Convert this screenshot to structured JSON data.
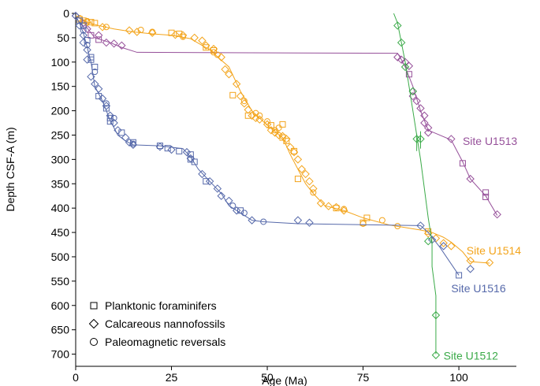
{
  "chart_data": {
    "type": "scatter",
    "xlabel": "Age (Ma)",
    "ylabel": "Depth CSF-A (m)",
    "xlim": [
      0,
      115
    ],
    "ylim": [
      0,
      725
    ],
    "y_inverted": true,
    "x_ticks": [
      0,
      25,
      50,
      75,
      100
    ],
    "y_ticks": [
      0,
      50,
      100,
      150,
      200,
      250,
      300,
      350,
      400,
      450,
      500,
      550,
      600,
      650,
      700
    ],
    "grid": false,
    "legend_position": "bottom-left",
    "legend": [
      {
        "marker": "square",
        "label": "Planktonic foraminifers"
      },
      {
        "marker": "diamond",
        "label": "Calcareous nannofossils"
      },
      {
        "marker": "circle",
        "label": "Paleomagnetic reversals"
      }
    ],
    "series": [
      {
        "name": "Site U1513",
        "color": "#96509a",
        "line": [
          [
            0,
            5
          ],
          [
            2,
            15
          ],
          [
            3,
            30
          ],
          [
            5,
            50
          ],
          [
            9,
            60
          ],
          [
            12,
            70
          ],
          [
            16,
            80
          ],
          [
            84,
            82
          ],
          [
            85,
            95
          ],
          [
            86,
            110
          ],
          [
            88,
            150
          ],
          [
            90,
            200
          ],
          [
            92,
            240
          ],
          [
            98,
            260
          ],
          [
            101,
            305
          ],
          [
            103,
            340
          ],
          [
            107,
            375
          ],
          [
            110,
            415
          ]
        ],
        "squares": [
          [
            4,
            45
          ],
          [
            6,
            54
          ],
          [
            87,
            125
          ],
          [
            101,
            308
          ],
          [
            107,
            368
          ],
          [
            107,
            377
          ]
        ],
        "diamonds": [
          [
            0,
            5
          ],
          [
            2,
            20
          ],
          [
            3,
            32
          ],
          [
            6,
            45
          ],
          [
            8,
            60
          ],
          [
            10,
            62
          ],
          [
            12,
            66
          ],
          [
            84,
            90
          ],
          [
            85,
            95
          ],
          [
            86,
            100
          ],
          [
            87,
            108
          ],
          [
            88,
            160
          ],
          [
            88,
            170
          ],
          [
            89,
            180
          ],
          [
            90,
            195
          ],
          [
            91,
            210
          ],
          [
            91,
            225
          ],
          [
            92,
            235
          ],
          [
            92,
            245
          ],
          [
            98,
            258
          ],
          [
            103,
            340
          ],
          [
            110,
            413
          ]
        ]
      },
      {
        "name": "Site U1514",
        "color": "#f3a41b",
        "line": [
          [
            0,
            5
          ],
          [
            3,
            18
          ],
          [
            6,
            25
          ],
          [
            10,
            32
          ],
          [
            15,
            38
          ],
          [
            20,
            42
          ],
          [
            25,
            45
          ],
          [
            30,
            52
          ],
          [
            35,
            75
          ],
          [
            40,
            110
          ],
          [
            43,
            160
          ],
          [
            46,
            200
          ],
          [
            50,
            230
          ],
          [
            54,
            255
          ],
          [
            56,
            290
          ],
          [
            58,
            320
          ],
          [
            60,
            350
          ],
          [
            62,
            370
          ],
          [
            65,
            395
          ],
          [
            70,
            405
          ],
          [
            75,
            420
          ],
          [
            82,
            435
          ],
          [
            90,
            445
          ],
          [
            93,
            450
          ],
          [
            96,
            460
          ],
          [
            98,
            470
          ],
          [
            101,
            490
          ],
          [
            103,
            510
          ],
          [
            108,
            513
          ]
        ],
        "squares": [
          [
            1,
            12
          ],
          [
            2,
            15
          ],
          [
            4,
            18
          ],
          [
            5,
            20
          ],
          [
            25,
            40
          ],
          [
            27,
            42
          ],
          [
            34,
            70
          ],
          [
            36,
            76
          ],
          [
            41,
            168
          ],
          [
            45,
            210
          ],
          [
            51,
            230
          ],
          [
            54,
            228
          ],
          [
            54,
            255
          ],
          [
            55,
            262
          ],
          [
            57,
            283
          ],
          [
            58,
            340
          ],
          [
            68,
            400
          ],
          [
            76,
            420
          ],
          [
            75,
            430
          ],
          [
            92,
            448
          ]
        ],
        "diamonds": [
          [
            3,
            18
          ],
          [
            7,
            28
          ],
          [
            14,
            35
          ],
          [
            16,
            38
          ],
          [
            20,
            40
          ],
          [
            26,
            44
          ],
          [
            28,
            45
          ],
          [
            31,
            50
          ],
          [
            33,
            56
          ],
          [
            34,
            66
          ],
          [
            36,
            73
          ],
          [
            38,
            90
          ],
          [
            39,
            115
          ],
          [
            40,
            125
          ],
          [
            42,
            145
          ],
          [
            43,
            170
          ],
          [
            44,
            185
          ],
          [
            45,
            198
          ],
          [
            46,
            210
          ],
          [
            47,
            215
          ],
          [
            48,
            218
          ],
          [
            50,
            228
          ],
          [
            51,
            240
          ],
          [
            52,
            245
          ],
          [
            53,
            250
          ],
          [
            54,
            252
          ],
          [
            55,
            258
          ],
          [
            56,
            275
          ],
          [
            57,
            285
          ],
          [
            58,
            300
          ],
          [
            59,
            320
          ],
          [
            60,
            330
          ],
          [
            61,
            345
          ],
          [
            62,
            360
          ],
          [
            64,
            390
          ],
          [
            66,
            396
          ],
          [
            68,
            398
          ],
          [
            70,
            405
          ],
          [
            92,
            452
          ],
          [
            94,
            462
          ],
          [
            96,
            472
          ],
          [
            98,
            478
          ],
          [
            103,
            508
          ],
          [
            108,
            512
          ]
        ],
        "circles": [
          [
            1,
            10
          ],
          [
            3,
            16
          ],
          [
            8,
            28
          ],
          [
            17,
            34
          ],
          [
            20,
            38
          ],
          [
            28,
            48
          ],
          [
            36,
            80
          ],
          [
            37,
            85
          ],
          [
            44,
            180
          ],
          [
            47,
            205
          ],
          [
            48,
            210
          ],
          [
            50,
            222
          ],
          [
            52,
            240
          ],
          [
            53,
            235
          ],
          [
            62,
            368
          ],
          [
            70,
            402
          ],
          [
            75,
            432
          ],
          [
            80,
            425
          ],
          [
            84,
            437
          ]
        ]
      },
      {
        "name": "Site U1516",
        "color": "#5669aa",
        "line": [
          [
            0,
            5
          ],
          [
            1,
            20
          ],
          [
            2,
            40
          ],
          [
            3,
            70
          ],
          [
            4,
            100
          ],
          [
            5,
            150
          ],
          [
            7,
            180
          ],
          [
            9,
            220
          ],
          [
            11,
            250
          ],
          [
            13,
            262
          ],
          [
            15,
            270
          ],
          [
            22,
            272
          ],
          [
            28,
            278
          ],
          [
            30,
            295
          ],
          [
            32,
            320
          ],
          [
            35,
            345
          ],
          [
            38,
            370
          ],
          [
            40,
            395
          ],
          [
            43,
            410
          ],
          [
            46,
            425
          ],
          [
            49,
            428
          ],
          [
            58,
            432
          ],
          [
            90,
            436
          ],
          [
            92,
            450
          ],
          [
            95,
            480
          ],
          [
            100,
            538
          ]
        ],
        "squares": [
          [
            1,
            15
          ],
          [
            2,
            25
          ],
          [
            3,
            55
          ],
          [
            4,
            90
          ],
          [
            4,
            95
          ],
          [
            5,
            110
          ],
          [
            6,
            170
          ],
          [
            8,
            195
          ],
          [
            9,
            215
          ],
          [
            9,
            222
          ],
          [
            12,
            245
          ],
          [
            15,
            265
          ],
          [
            22,
            272
          ],
          [
            24,
            277
          ],
          [
            27,
            283
          ],
          [
            30,
            290
          ],
          [
            30,
            300
          ],
          [
            31,
            305
          ],
          [
            34,
            345
          ],
          [
            43,
            405
          ],
          [
            100,
            538
          ]
        ],
        "diamonds": [
          [
            0,
            5
          ],
          [
            1,
            25
          ],
          [
            2,
            45
          ],
          [
            2,
            60
          ],
          [
            3,
            75
          ],
          [
            3,
            95
          ],
          [
            4,
            130
          ],
          [
            5,
            145
          ],
          [
            6,
            155
          ],
          [
            7,
            175
          ],
          [
            8,
            190
          ],
          [
            9,
            210
          ],
          [
            10,
            225
          ],
          [
            11,
            240
          ],
          [
            13,
            255
          ],
          [
            14,
            265
          ],
          [
            15,
            270
          ],
          [
            22,
            274
          ],
          [
            25,
            280
          ],
          [
            29,
            285
          ],
          [
            30,
            298
          ],
          [
            33,
            330
          ],
          [
            35,
            345
          ],
          [
            37,
            360
          ],
          [
            38,
            375
          ],
          [
            40,
            385
          ],
          [
            42,
            405
          ],
          [
            46,
            425
          ],
          [
            58,
            425
          ],
          [
            61,
            430
          ],
          [
            90,
            436
          ],
          [
            93,
            465
          ],
          [
            96,
            478
          ],
          [
            103,
            525
          ]
        ],
        "circles": [
          [
            2,
            35
          ],
          [
            3,
            65
          ],
          [
            5,
            120
          ],
          [
            8,
            185
          ],
          [
            10,
            215
          ],
          [
            15,
            268
          ],
          [
            41,
            395
          ],
          [
            44,
            410
          ],
          [
            49,
            428
          ]
        ]
      },
      {
        "name": "Site U1512",
        "color": "#3aaa48",
        "line": [
          [
            83,
            0
          ],
          [
            84,
            20
          ],
          [
            85,
            60
          ],
          [
            86,
            100
          ],
          [
            88,
            200
          ],
          [
            89,
            250
          ],
          [
            90,
            300
          ],
          [
            91,
            360
          ],
          [
            92,
            420
          ],
          [
            93,
            470
          ],
          [
            93,
            520
          ],
          [
            94,
            580
          ],
          [
            94,
            620
          ],
          [
            94,
            700
          ]
        ],
        "diamonds": [
          [
            84,
            25
          ],
          [
            85,
            60
          ],
          [
            86,
            110
          ],
          [
            88,
            160
          ],
          [
            89,
            258
          ],
          [
            90,
            258
          ],
          [
            92,
            468
          ],
          [
            94,
            620
          ],
          [
            94,
            702
          ]
        ],
        "crosses": [
          [
            89,
            265
          ],
          [
            90,
            260
          ]
        ]
      }
    ],
    "labels": [
      {
        "text": "Site U1513",
        "series": "Site U1513",
        "x": 101,
        "y": 262
      },
      {
        "text": "Site U1514",
        "series": "Site U1514",
        "x": 102,
        "y": 487
      },
      {
        "text": "Site U1516",
        "series": "Site U1516",
        "x": 98,
        "y": 565
      },
      {
        "text": "Site U1512",
        "series": "Site U1512",
        "x": 96,
        "y": 703
      }
    ]
  }
}
